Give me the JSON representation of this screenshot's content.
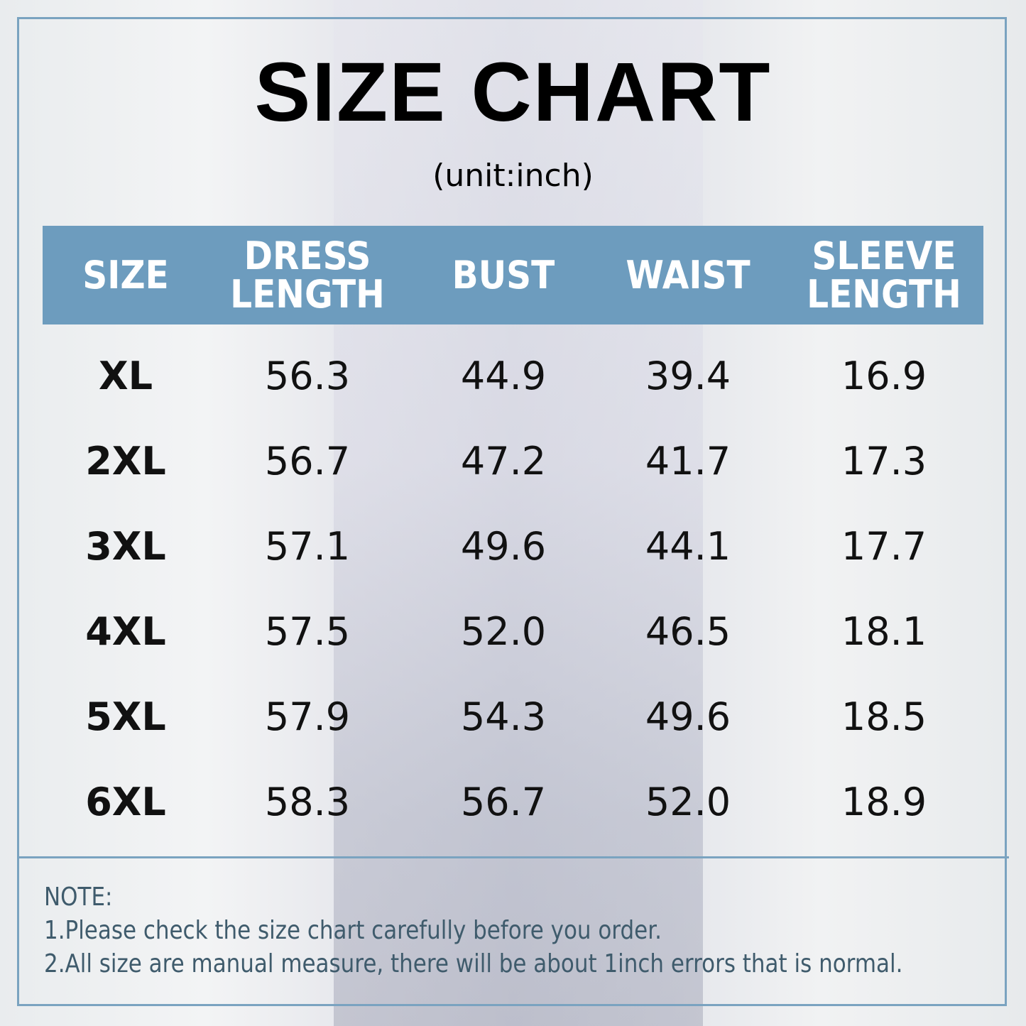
{
  "title": "SIZE CHART",
  "subtitle": "(unit:inch)",
  "colors": {
    "header": "#6d9cbe",
    "border": "#7aa3c0",
    "note_text": "#3f5b6c"
  },
  "table": {
    "headers": [
      [
        "SIZE"
      ],
      [
        "DRESS",
        "LENGTH"
      ],
      [
        "BUST"
      ],
      [
        "WAIST"
      ],
      [
        "SLEEVE",
        "LENGTH"
      ]
    ],
    "rows": [
      [
        "XL",
        "56.3",
        "44.9",
        "39.4",
        "16.9"
      ],
      [
        "2XL",
        "56.7",
        "47.2",
        "41.7",
        "17.3"
      ],
      [
        "3XL",
        "57.1",
        "49.6",
        "44.1",
        "17.7"
      ],
      [
        "4XL",
        "57.5",
        "52.0",
        "46.5",
        "18.1"
      ],
      [
        "5XL",
        "57.9",
        "54.3",
        "49.6",
        "18.5"
      ],
      [
        "6XL",
        "58.3",
        "56.7",
        "52.0",
        "18.9"
      ]
    ]
  },
  "notes": [
    "NOTE:",
    "1.Please check the size chart carefully before you order.",
    "2.All size are manual measure, there will be about 1inch errors that is normal."
  ]
}
